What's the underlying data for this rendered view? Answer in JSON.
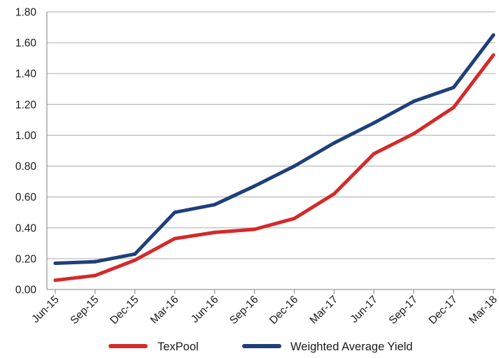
{
  "chart_data": {
    "type": "line",
    "title": "",
    "xlabel": "",
    "ylabel": "",
    "categories": [
      "Jun-15",
      "Sep-15",
      "Dec-15",
      "Mar-16",
      "Jun-16",
      "Sep-16",
      "Dec-16",
      "Mar-17",
      "Jun-17",
      "Sep-17",
      "Dec-17",
      "Mar-18"
    ],
    "ylim": [
      0,
      1.8
    ],
    "yticks": [
      "0.00",
      "0.20",
      "0.40",
      "0.60",
      "0.80",
      "1.00",
      "1.20",
      "1.40",
      "1.60",
      "1.80"
    ],
    "grid": true,
    "legend_position": "bottom",
    "series": [
      {
        "name": "TexPool",
        "color": "#d42a2a",
        "values": [
          0.06,
          0.09,
          0.19,
          0.33,
          0.37,
          0.39,
          0.46,
          0.62,
          0.88,
          1.01,
          1.18,
          1.52
        ]
      },
      {
        "name": "Weighted Average Yield",
        "color": "#1f3f7a",
        "values": [
          0.17,
          0.18,
          0.23,
          0.5,
          0.55,
          0.67,
          0.8,
          0.95,
          1.08,
          1.22,
          1.31,
          1.65
        ]
      }
    ]
  }
}
